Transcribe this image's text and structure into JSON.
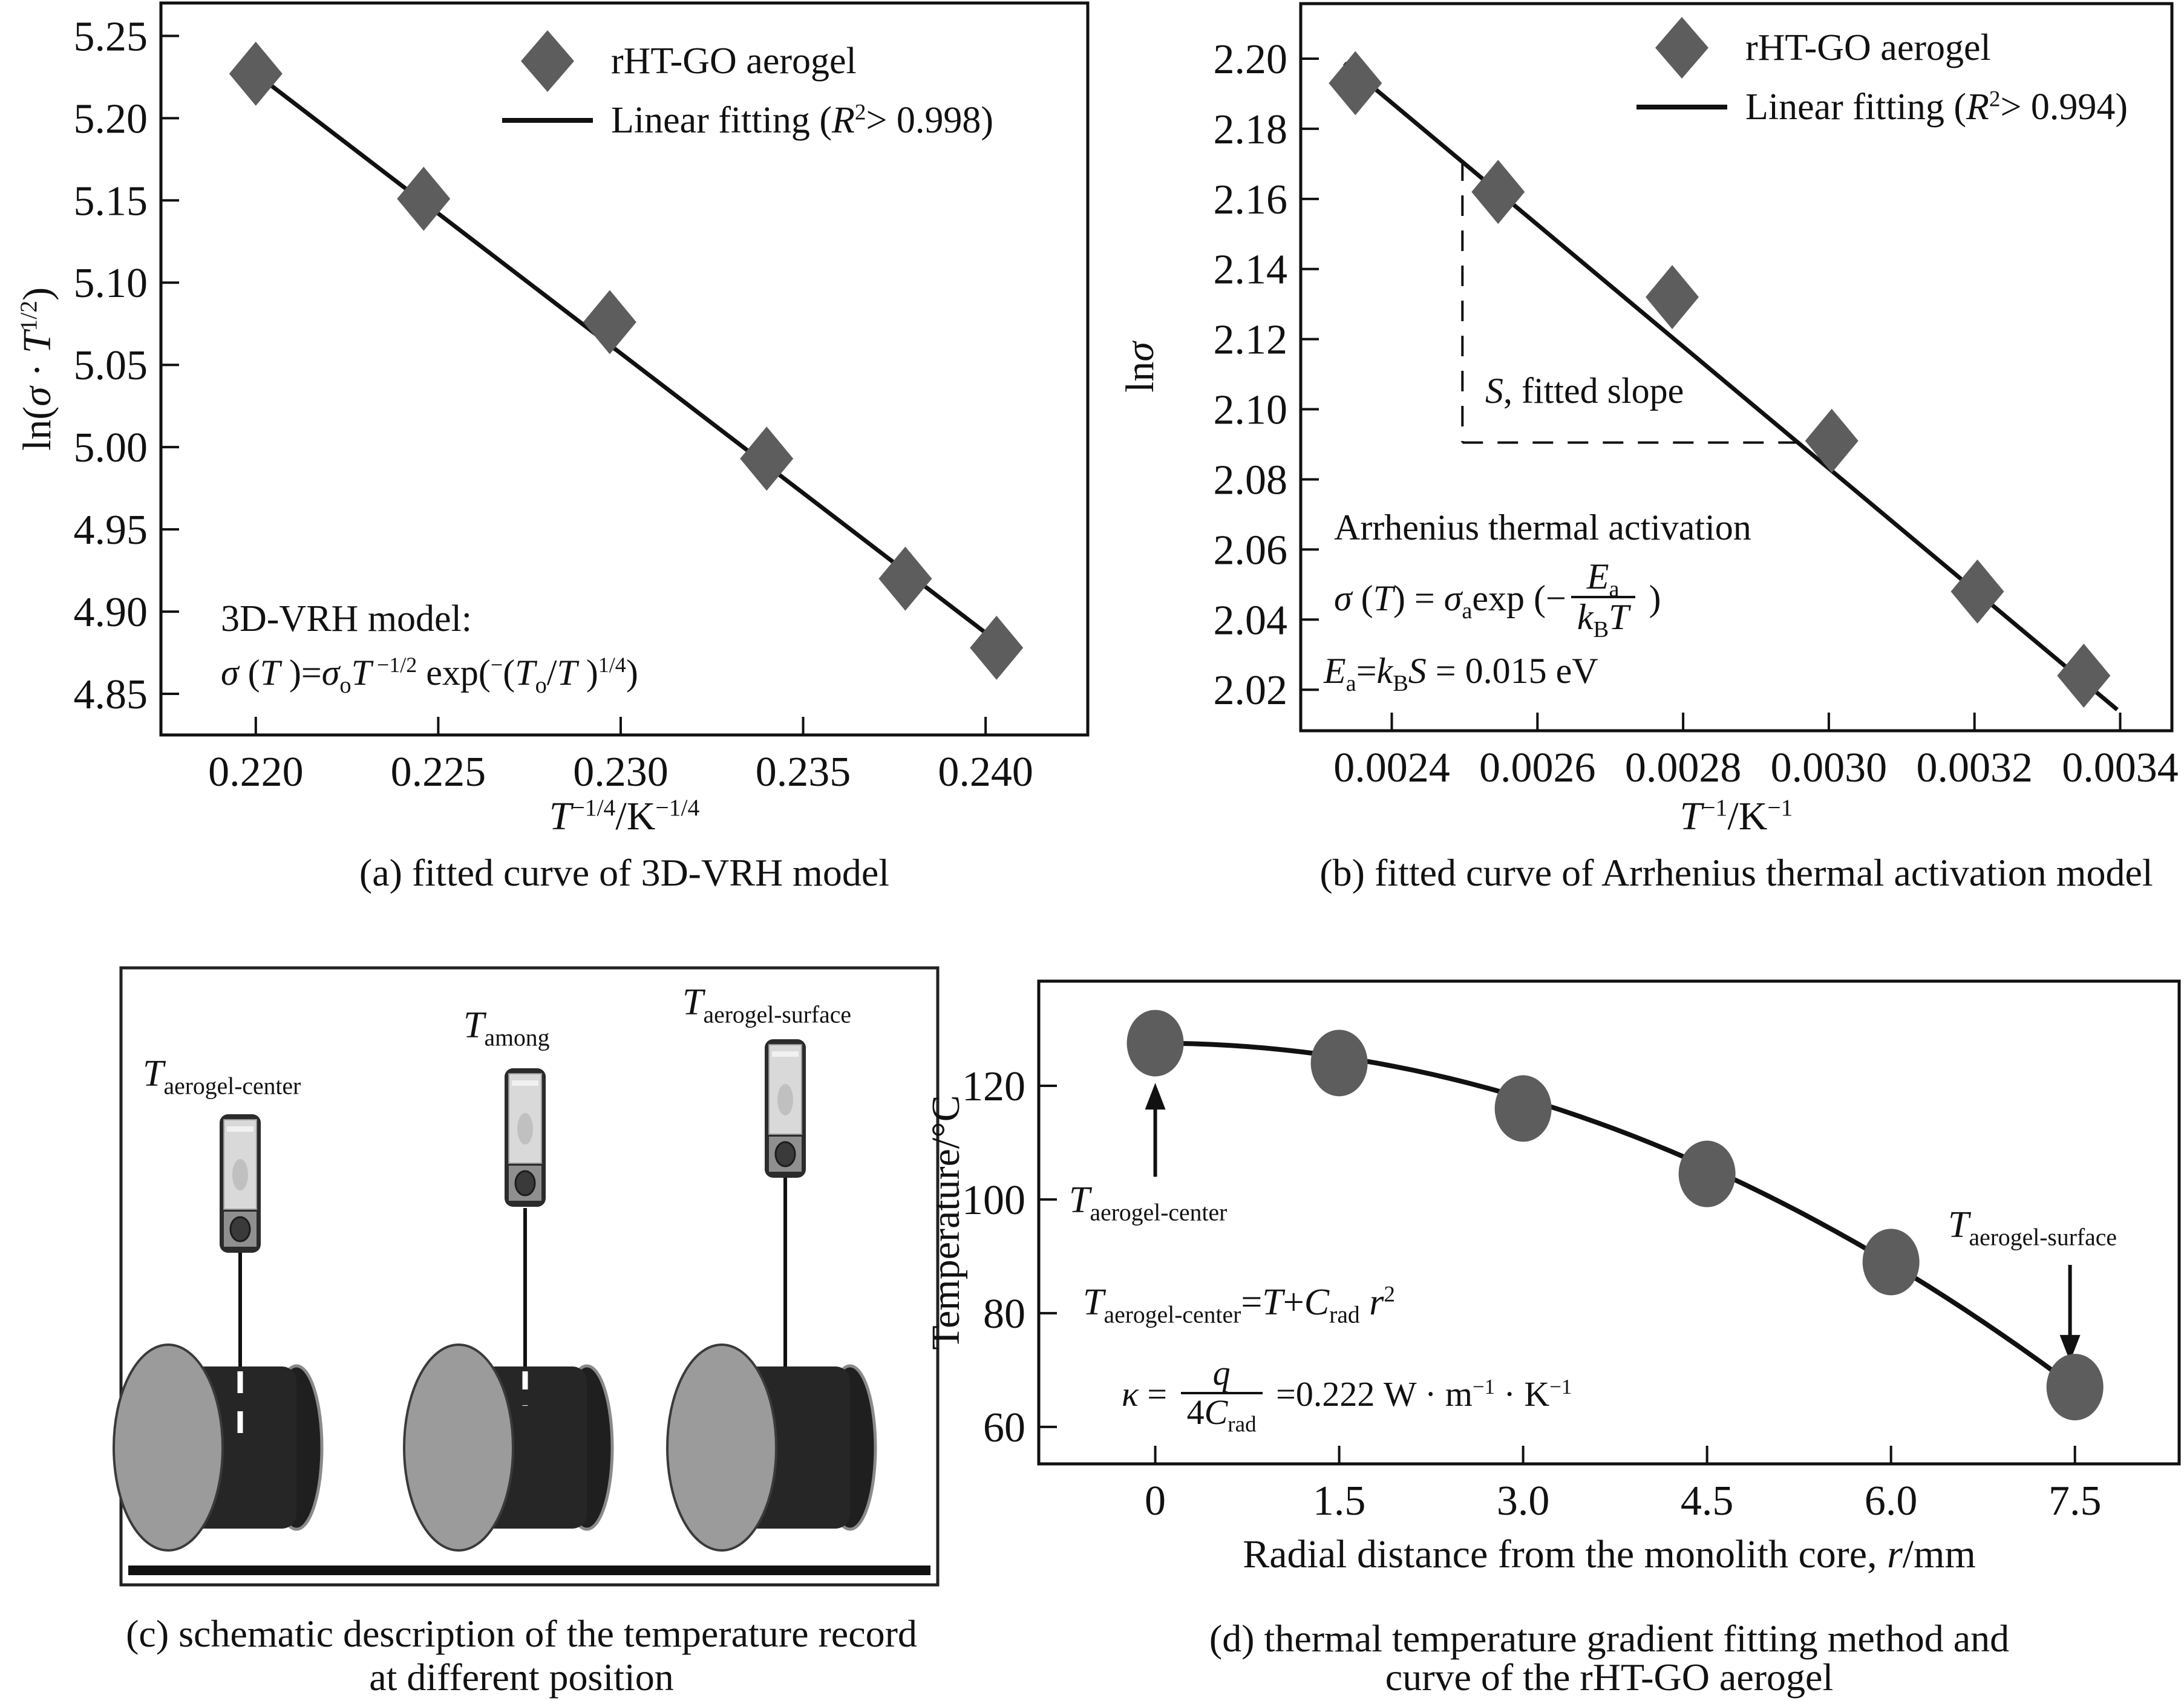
{
  "colors": {
    "marker": "#5d5d5d",
    "line": "#111111",
    "drum": "#262626",
    "disc_front": "#9b9b9b",
    "disc_back": "#1f1f1f",
    "thermo_frame": "#2b2b2b",
    "thermo_screen": "#d9d9d9",
    "thermo_body": "#8f8f8f"
  },
  "panel_a": {
    "caption": "(a) fitted curve of 3D-VRH model",
    "legend": {
      "item1": "rHT-GO aerogel",
      "item2": [
        {
          "t": "Linear fitting (",
          "s": "n"
        },
        {
          "t": "R",
          "s": "i"
        },
        {
          "t": "2",
          "s": "sup"
        },
        {
          "t": "> 0.998)",
          "s": "n"
        }
      ]
    },
    "model_title": "3D-VRH model:",
    "model_eq": [
      {
        "t": "σ",
        "s": "i"
      },
      {
        "t": " (",
        "s": "n"
      },
      {
        "t": "T",
        "s": "i"
      },
      {
        "t": " )=",
        "s": "n"
      },
      {
        "t": "σ",
        "s": "i"
      },
      {
        "t": "o",
        "s": "sub"
      },
      {
        "t": "T",
        "s": "i"
      },
      {
        "t": " −1/2",
        "s": "sup"
      },
      {
        "t": " exp(",
        "s": "n"
      },
      {
        "t": "−",
        "s": "sup"
      },
      {
        "t": "(",
        "s": "n"
      },
      {
        "t": "T",
        "s": "i"
      },
      {
        "t": "o",
        "s": "sub"
      },
      {
        "t": "/",
        "s": "n"
      },
      {
        "t": "T",
        "s": "i"
      },
      {
        "t": " )",
        "s": "n"
      },
      {
        "t": "1/4",
        "s": "sup"
      },
      {
        "t": ")",
        "s": "n"
      }
    ],
    "xlabel": [
      {
        "t": "T",
        "s": "i"
      },
      {
        "t": "−1/4",
        "s": "sup"
      },
      {
        "t": "/K",
        "s": "n"
      },
      {
        "t": "−1/4",
        "s": "sup"
      }
    ],
    "ylabel": [
      {
        "t": "ln(",
        "s": "n"
      },
      {
        "t": "σ",
        "s": "i"
      },
      {
        "t": " · ",
        "s": "n"
      },
      {
        "t": "T",
        "s": "i"
      },
      {
        "t": "1/2",
        "s": "sup"
      },
      {
        "t": ")",
        "s": "n"
      }
    ]
  },
  "panel_b": {
    "caption": "(b) fitted curve of Arrhenius thermal activation model",
    "legend": {
      "item1": "rHT-GO aerogel",
      "item2": [
        {
          "t": "Linear fitting (",
          "s": "n"
        },
        {
          "t": "R",
          "s": "i"
        },
        {
          "t": "2",
          "s": "sup"
        },
        {
          "t": "> 0.994)",
          "s": "n"
        }
      ]
    },
    "slope_label": [
      {
        "t": "S",
        "s": "i"
      },
      {
        "t": ", fitted slope",
        "s": "n"
      }
    ],
    "activation_label": "Arrhenius thermal activation",
    "eq1": [
      {
        "t": "σ",
        "s": "i"
      },
      {
        "t": " (",
        "s": "n"
      },
      {
        "t": "T",
        "s": "i"
      },
      {
        "t": ") = ",
        "s": "n"
      },
      {
        "t": "σ",
        "s": "i"
      },
      {
        "t": "a",
        "s": "sub"
      },
      {
        "t": "exp (−",
        "s": "n"
      },
      {
        "s": "frac",
        "num": [
          {
            "t": "E",
            "s": "i"
          },
          {
            "t": "a",
            "s": "sub"
          }
        ],
        "den": [
          {
            "t": "k",
            "s": "i"
          },
          {
            "t": "B",
            "s": "sub"
          },
          {
            "t": "T",
            "s": "i"
          }
        ]
      },
      {
        "t": " )",
        "s": "n"
      }
    ],
    "eq2": [
      {
        "t": "E",
        "s": "i"
      },
      {
        "t": "a",
        "s": "sub"
      },
      {
        "t": "=",
        "s": "n"
      },
      {
        "t": "k",
        "s": "i"
      },
      {
        "t": "B",
        "s": "sub"
      },
      {
        "t": "S",
        "s": "i"
      },
      {
        "t": " = 0.015 eV",
        "s": "n"
      }
    ],
    "xlabel": [
      {
        "t": "T",
        "s": "i"
      },
      {
        "t": "−1",
        "s": "sup"
      },
      {
        "t": "/K",
        "s": "n"
      },
      {
        "t": "−1",
        "s": "sup"
      }
    ],
    "ylabel": [
      {
        "t": "ln",
        "s": "n"
      },
      {
        "t": "σ",
        "s": "i"
      }
    ]
  },
  "panel_c": {
    "caption_line1": "(c) schematic description of the temperature record",
    "caption_line2": "at different position",
    "label_center": [
      {
        "t": "T",
        "s": "i"
      },
      {
        "t": "aerogel-center",
        "s": "sub"
      }
    ],
    "label_among": [
      {
        "t": "T",
        "s": "i"
      },
      {
        "t": "among",
        "s": "sub"
      }
    ],
    "label_surface": [
      {
        "t": "T",
        "s": "i"
      },
      {
        "t": "aerogel-surface",
        "s": "sub"
      }
    ]
  },
  "panel_d": {
    "caption_line1": "(d) thermal temperature gradient fitting method and",
    "caption_line2": "curve of the rHT-GO aerogel",
    "xlabel": [
      {
        "t": "Radial distance from the monolith core, ",
        "s": "n"
      },
      {
        "t": "r",
        "s": "i"
      },
      {
        "t": "/mm",
        "s": "n"
      }
    ],
    "ylabel": "Temperature/°C",
    "label_center": [
      {
        "t": "T",
        "s": "i"
      },
      {
        "t": "aerogel-center",
        "s": "sub"
      }
    ],
    "label_surface": [
      {
        "t": "T",
        "s": "i"
      },
      {
        "t": "aerogel-surface",
        "s": "sub"
      }
    ],
    "eq1": [
      {
        "t": "T",
        "s": "i"
      },
      {
        "t": "aerogel-center",
        "s": "sub"
      },
      {
        "t": "=",
        "s": "n"
      },
      {
        "t": "T",
        "s": "i"
      },
      {
        "t": "+",
        "s": "n"
      },
      {
        "t": "C",
        "s": "i"
      },
      {
        "t": "rad",
        "s": "sub"
      },
      {
        "t": " ",
        "s": "n"
      },
      {
        "t": "r",
        "s": "i"
      },
      {
        "t": "2",
        "s": "sup"
      }
    ],
    "eq2": [
      {
        "t": "κ",
        "s": "i"
      },
      {
        "t": " = ",
        "s": "n"
      },
      {
        "s": "frac",
        "num": [
          {
            "t": "q",
            "s": "i"
          }
        ],
        "den": [
          {
            "t": "4",
            "s": "n"
          },
          {
            "t": "C",
            "s": "i"
          },
          {
            "t": "rad",
            "s": "sub"
          }
        ]
      },
      {
        "t": " =0.222 W · m",
        "s": "n"
      },
      {
        "t": "−1",
        "s": "sup"
      },
      {
        "t": " · K",
        "s": "n"
      },
      {
        "t": "−1",
        "s": "sup"
      }
    ]
  },
  "chart_data": [
    {
      "id": "a",
      "type": "scatter",
      "marker": "diamond",
      "title": "(a) fitted curve of 3D-VRH model",
      "xlabel": "T^(-1/4)/K^(-1/4)",
      "ylabel": "ln(σ·T^(1/2))",
      "xlim": [
        0.2174,
        0.2428
      ],
      "ylim": [
        4.825,
        5.27
      ],
      "xticks": [
        0.22,
        0.225,
        0.23,
        0.235,
        0.24
      ],
      "xtick_labels": [
        "0.220",
        "0.225",
        "0.230",
        "0.235",
        "0.240"
      ],
      "yticks": [
        5.25,
        5.2,
        5.15,
        5.1,
        5.05,
        5.0,
        4.95,
        4.9,
        4.85
      ],
      "ytick_labels": [
        "5.25",
        "5.20",
        "5.15",
        "5.10",
        "5.05",
        "5.00",
        "4.95",
        "4.90",
        "4.85"
      ],
      "points": [
        [
          0.22,
          5.227
        ],
        [
          0.2246,
          5.151
        ],
        [
          0.2297,
          5.076
        ],
        [
          0.234,
          4.993
        ],
        [
          0.2378,
          4.92
        ],
        [
          0.2403,
          4.878
        ]
      ],
      "fit_line": {
        "x1": 0.22,
        "y1": 5.227,
        "x2": 0.2403,
        "y2": 4.882
      },
      "legend": [
        "rHT-GO aerogel",
        "Linear fitting (R² > 0.998)"
      ],
      "grid": false
    },
    {
      "id": "b",
      "type": "scatter",
      "marker": "diamond",
      "title": "(b) fitted curve of Arrhenius thermal activation model",
      "xlabel": "T^(-1)/K^(-1)",
      "ylabel": "lnσ",
      "xlim": [
        0.002275,
        0.003471
      ],
      "ylim": [
        2.0083,
        2.2157
      ],
      "xticks": [
        0.0024,
        0.0026,
        0.0028,
        0.003,
        0.0032,
        0.0034
      ],
      "xtick_labels": [
        "0.0024",
        "0.0026",
        "0.0028",
        "0.0030",
        "0.0032",
        "0.0034"
      ],
      "yticks": [
        2.2,
        2.18,
        2.16,
        2.14,
        2.12,
        2.1,
        2.08,
        2.06,
        2.04,
        2.02
      ],
      "ytick_labels": [
        "2.20",
        "2.18",
        "2.16",
        "2.14",
        "2.12",
        "2.10",
        "2.08",
        "2.06",
        "2.04",
        "2.02"
      ],
      "points": [
        [
          0.00235,
          2.193
        ],
        [
          0.002546,
          2.162
        ],
        [
          0.002785,
          2.132
        ],
        [
          0.003004,
          2.091
        ],
        [
          0.003204,
          2.048
        ],
        [
          0.00335,
          2.024
        ]
      ],
      "fit_line": {
        "x1": 0.002335,
        "y1": 2.1987,
        "x2": 0.003396,
        "y2": 2.0143
      },
      "dashed_guide": {
        "x": 0.002497,
        "y_top": 2.171,
        "y": 2.0905,
        "x_end": 0.003004
      },
      "fitted_activation_energy_eV": 0.015,
      "legend": [
        "rHT-GO aerogel",
        "Linear fitting (R² > 0.994)"
      ],
      "grid": false
    },
    {
      "id": "d",
      "type": "scatter",
      "marker": "circle",
      "title": "(d) thermal temperature gradient fitting method and curve of the rHT-GO aerogel",
      "xlabel": "Radial distance from the monolith core, r/mm",
      "ylabel": "Temperature/°C",
      "xlim": [
        -0.95,
        8.35
      ],
      "ylim": [
        53.5,
        138.4
      ],
      "xticks": [
        0,
        1.5,
        3.0,
        4.5,
        6.0,
        7.5
      ],
      "xtick_labels": [
        "0",
        "1.5",
        "3.0",
        "4.5",
        "6.0",
        "7.5"
      ],
      "yticks": [
        120,
        100,
        80,
        60
      ],
      "ytick_labels": [
        "120",
        "100",
        "80",
        "60"
      ],
      "points": [
        [
          0,
          127.5
        ],
        [
          1.5,
          124
        ],
        [
          3.0,
          116
        ],
        [
          4.5,
          104.5
        ],
        [
          6.0,
          89
        ],
        [
          7.5,
          67
        ]
      ],
      "curve": {
        "c0": 127.5,
        "c2": -1.0756,
        "r_min": 0,
        "r_max": 7.55
      },
      "arrows": [
        {
          "x": 0,
          "y_from": 104,
          "y_to": 120.5
        },
        {
          "x": 7.46,
          "y_from": 88.5,
          "y_to": 71.5
        }
      ],
      "thermal_conductivity_W_m_K": 0.222,
      "grid": false
    }
  ]
}
